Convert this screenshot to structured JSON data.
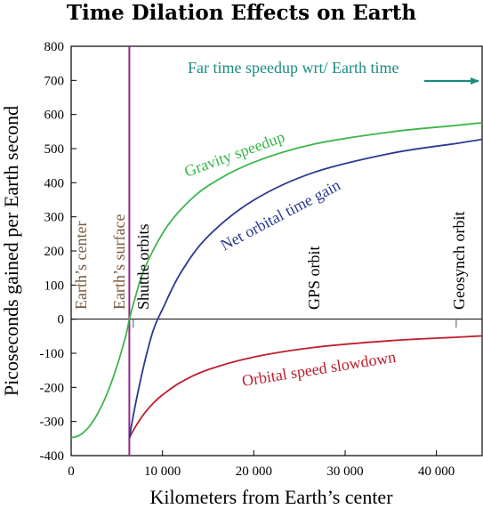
{
  "chart_data": {
    "type": "line",
    "title": "Time Dilation Effects on Earth",
    "xlabel": "Kilometers from Earth’s center",
    "ylabel": "Picoseconds gained per Earth second",
    "xlim": [
      0,
      45000
    ],
    "ylim": [
      -400,
      800
    ],
    "x_ticks": [
      0,
      10000,
      20000,
      30000,
      40000
    ],
    "x_tick_labels": [
      "0",
      "10 000",
      "20 000",
      "30 000",
      "40 000"
    ],
    "y_ticks": [
      -400,
      -300,
      -200,
      -100,
      0,
      100,
      200,
      300,
      400,
      500,
      600,
      700,
      800
    ],
    "y_tick_labels": [
      "-400",
      "-300",
      "-200",
      "-100",
      "0",
      "100",
      "200",
      "300",
      "400",
      "500",
      "600",
      "700",
      "800"
    ],
    "grid": false,
    "colors": {
      "gravity": "#3cb54a",
      "net": "#2b3990",
      "orbital": "#be1e2d",
      "surface_line": "#92278f",
      "reference_labels": "#7b5a3c",
      "far_time": "#1a8c7f"
    },
    "surface_radius_km": 6371,
    "series": [
      {
        "name": "Gravity speedup",
        "color": "#3cb54a",
        "x": [
          0,
          1000,
          2000,
          3000,
          4000,
          5000,
          6000,
          6371,
          7000,
          8000,
          10000,
          12000,
          15000,
          20000,
          26560,
          35000,
          42164,
          45000
        ],
        "values": [
          -348,
          -339,
          -314,
          -272,
          -214,
          -139,
          -47,
          0,
          62,
          146,
          251,
          321,
          391,
          460,
          513,
          549,
          568,
          576
        ]
      },
      {
        "name": "Orbital speed slowdown",
        "color": "#be1e2d",
        "x": [
          6371,
          7000,
          8000,
          9000,
          10000,
          12000,
          15000,
          20000,
          26560,
          35000,
          42164,
          45000
        ],
        "values": [
          -348,
          -317,
          -277,
          -246,
          -222,
          -185,
          -148,
          -111,
          -83,
          -63,
          -53,
          -49
        ]
      },
      {
        "name": "Net orbital time gain",
        "color": "#2b3990",
        "x": [
          6371,
          7000,
          8000,
          9000,
          10000,
          12000,
          15000,
          20000,
          26560,
          35000,
          42164,
          45000
        ],
        "values": [
          -348,
          -255,
          -131,
          -32,
          29,
          136,
          243,
          349,
          430,
          486,
          515,
          527
        ]
      }
    ],
    "annotations": {
      "far_time": "Far time speedup wrt/ Earth time",
      "gravity": "Gravity speedup",
      "net": "Net orbital time gain",
      "orbital": "Orbital speed slowdown",
      "earth_center": "Earth’s center",
      "earth_surface": "Earth’s surface",
      "shuttle": "Shuttle orbits",
      "gps": "GPS orbit",
      "geosynch": "Geosynch orbit"
    }
  }
}
